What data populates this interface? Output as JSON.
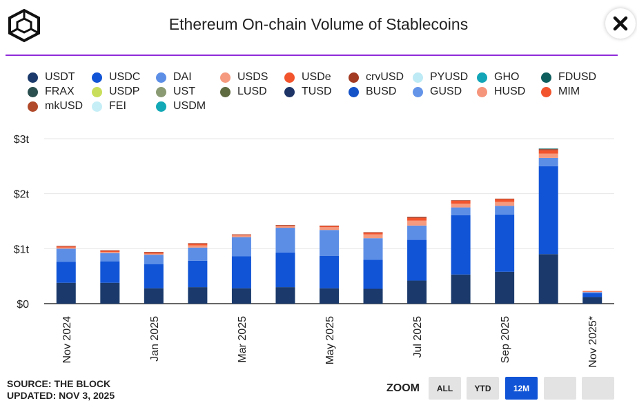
{
  "header": {
    "title": "Ethereum On-chain Volume of Stablecoins"
  },
  "footer": {
    "source": "SOURCE: THE BLOCK",
    "updated": "UPDATED: NOV 3, 2025"
  },
  "zoom": {
    "label": "ZOOM",
    "buttons": [
      {
        "label": "ALL",
        "active": false
      },
      {
        "label": "YTD",
        "active": false
      },
      {
        "label": "12M",
        "active": true
      },
      {
        "label": "",
        "active": false
      },
      {
        "label": "",
        "active": false
      }
    ]
  },
  "colors": {
    "accent_divider": "#8f2bd9",
    "active_button": "#1154d6"
  },
  "chart_data": {
    "type": "bar",
    "stacked": true,
    "title": "Ethereum On-chain Volume of Stablecoins",
    "y_ticks": [
      "$0",
      "$1t",
      "$2t",
      "$3t"
    ],
    "ylim": [
      0,
      3
    ],
    "y_unit": "trillion USD",
    "grid": true,
    "legend_position": "top",
    "categories": [
      "Nov 2024",
      "Dec 2024",
      "Jan 2025",
      "Feb 2025",
      "Mar 2025",
      "Apr 2025",
      "May 2025",
      "Jun 2025",
      "Jul 2025",
      "Aug 2025",
      "Sep 2025",
      "Oct 2025",
      "Nov 2025*"
    ],
    "x_tick_labels": [
      "Nov 2024",
      "",
      "Jan 2025",
      "",
      "Mar 2025",
      "",
      "May 2025",
      "",
      "Jul 2025",
      "",
      "Sep 2025",
      "",
      "Nov 2025*"
    ],
    "legend": [
      {
        "name": "USDT",
        "color": "#1b3a6b"
      },
      {
        "name": "USDC",
        "color": "#1154d6"
      },
      {
        "name": "DAI",
        "color": "#5c8ee6"
      },
      {
        "name": "USDS",
        "color": "#f59a7e"
      },
      {
        "name": "USDe",
        "color": "#f2542d"
      },
      {
        "name": "crvUSD",
        "color": "#a33a22"
      },
      {
        "name": "PYUSD",
        "color": "#bdeaf5"
      },
      {
        "name": "GHO",
        "color": "#12a5b8"
      },
      {
        "name": "FDUSD",
        "color": "#0e5e5e"
      },
      {
        "name": "FRAX",
        "color": "#2b4f4f"
      },
      {
        "name": "USDP",
        "color": "#c9de5a"
      },
      {
        "name": "UST",
        "color": "#8a9a72"
      },
      {
        "name": "LUSD",
        "color": "#5e6a40"
      },
      {
        "name": "TUSD",
        "color": "#1d3366"
      },
      {
        "name": "BUSD",
        "color": "#1452c8"
      },
      {
        "name": "GUSD",
        "color": "#6494e8"
      },
      {
        "name": "HUSD",
        "color": "#f5957c"
      },
      {
        "name": "MIM",
        "color": "#f2542d"
      },
      {
        "name": "mkUSD",
        "color": "#b04a2a"
      },
      {
        "name": "FEI",
        "color": "#c6eef7"
      },
      {
        "name": "USDM",
        "color": "#12a8b5"
      }
    ],
    "series": [
      {
        "name": "USDT",
        "color": "#1b3a6b",
        "values": [
          0.38,
          0.38,
          0.28,
          0.3,
          0.28,
          0.3,
          0.28,
          0.27,
          0.42,
          0.53,
          0.58,
          0.9,
          0.12
        ]
      },
      {
        "name": "USDC",
        "color": "#1154d6",
        "values": [
          0.38,
          0.39,
          0.44,
          0.48,
          0.58,
          0.63,
          0.59,
          0.53,
          0.74,
          1.08,
          1.04,
          1.6,
          0.07
        ]
      },
      {
        "name": "DAI",
        "color": "#5c8ee6",
        "values": [
          0.24,
          0.15,
          0.17,
          0.24,
          0.35,
          0.45,
          0.47,
          0.39,
          0.26,
          0.14,
          0.16,
          0.15,
          0.02
        ]
      },
      {
        "name": "USDS",
        "color": "#f59a7e",
        "values": [
          0.02,
          0.02,
          0.02,
          0.04,
          0.03,
          0.03,
          0.05,
          0.07,
          0.09,
          0.07,
          0.07,
          0.08,
          0.01
        ]
      },
      {
        "name": "USDe",
        "color": "#f2542d",
        "values": [
          0.02,
          0.02,
          0.02,
          0.03,
          0.01,
          0.01,
          0.02,
          0.03,
          0.05,
          0.05,
          0.05,
          0.06,
          0.01
        ]
      },
      {
        "name": "crvUSD",
        "color": "#a33a22",
        "values": [
          0.01,
          0.01,
          0.01,
          0.01,
          0.01,
          0.01,
          0.01,
          0.01,
          0.02,
          0.01,
          0.01,
          0.02,
          0.0
        ]
      },
      {
        "name": "FDUSD",
        "color": "#0e5e5e",
        "values": [
          0.0,
          0.0,
          0.0,
          0.0,
          0.0,
          0.0,
          0.0,
          0.0,
          0.0,
          0.0,
          0.0,
          0.01,
          0.0
        ]
      }
    ]
  }
}
